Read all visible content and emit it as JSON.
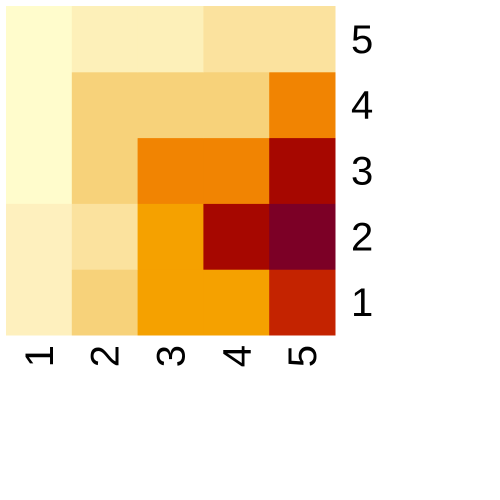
{
  "chart_data": {
    "type": "heatmap",
    "x_labels": [
      "1",
      "2",
      "3",
      "4",
      "5"
    ],
    "y_labels": [
      "1",
      "2",
      "3",
      "4",
      "5"
    ],
    "title": "",
    "xlabel": "",
    "ylabel": "",
    "legend": "none",
    "grid": false,
    "colormap": "YlOrRd",
    "cell_colors": [
      [
        "#FEF0BE",
        "#F7D27A",
        "#F5A100",
        "#F5A100",
        "#C42300"
      ],
      [
        "#FEF0BE",
        "#FBE29E",
        "#F5A100",
        "#A60700",
        "#7C0026"
      ],
      [
        "#FFFCCC",
        "#F7D27A",
        "#F18402",
        "#F18402",
        "#A60700"
      ],
      [
        "#FFFCCC",
        "#F7D27A",
        "#F7D27A",
        "#F7D27A",
        "#F18402"
      ],
      [
        "#FFFCCC",
        "#FDF0B9",
        "#FDF0B9",
        "#FBE29E",
        "#FBE29E"
      ]
    ]
  }
}
